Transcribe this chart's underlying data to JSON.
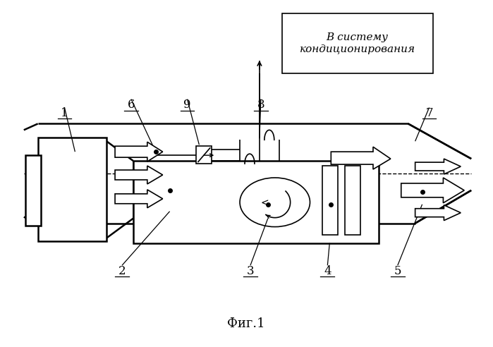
{
  "bg_color": "#ffffff",
  "line_color": "#000000",
  "fig_caption": "Фиг.1",
  "box_label": "В систему\nкондиционирования"
}
